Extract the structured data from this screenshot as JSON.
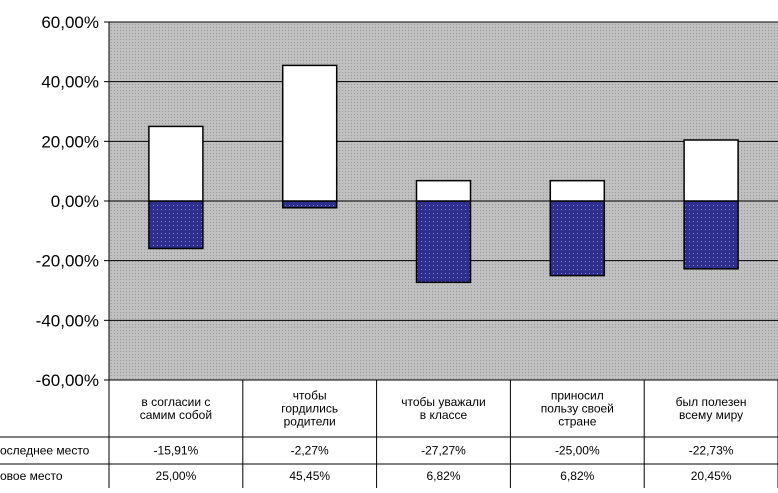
{
  "chart_data": {
    "type": "bar",
    "stacked": true,
    "categories": [
      [
        "в согласии с",
        "самим собой"
      ],
      [
        "чтобы",
        "гордились",
        "родители"
      ],
      [
        "чтобы уважали",
        "в классе"
      ],
      [
        "приносил",
        "пользу своей",
        "стране"
      ],
      [
        "был полезен",
        "всему миру"
      ]
    ],
    "series": [
      {
        "name": "оследнее место",
        "values": [
          -15.91,
          -2.27,
          -27.27,
          -25.0,
          -22.73
        ],
        "labels": [
          "-15,91%",
          "-2,27%",
          "-27,27%",
          "-25,00%",
          "-22,73%"
        ],
        "color": "#2e2e8e"
      },
      {
        "name": "овое место",
        "values": [
          25.0,
          45.45,
          6.82,
          6.82,
          20.45
        ],
        "labels": [
          "25,00%",
          "45,45%",
          "6,82%",
          "6,82%",
          "20,45%"
        ],
        "color": "#ffffff"
      }
    ],
    "ylim": [
      -60,
      60
    ],
    "yticks": [
      {
        "value": 60,
        "label": "60,00%"
      },
      {
        "value": 40,
        "label": "40,00%"
      },
      {
        "value": 20,
        "label": "20,00%"
      },
      {
        "value": 0,
        "label": "0,00%"
      },
      {
        "value": -20,
        "label": "-20,00%"
      },
      {
        "value": -40,
        "label": "-40,00%"
      },
      {
        "value": -60,
        "label": "-60,00%"
      }
    ],
    "grid": true,
    "plot_background": "#c0c0c0",
    "data_table": true,
    "title": "",
    "xlabel": "",
    "ylabel": ""
  }
}
